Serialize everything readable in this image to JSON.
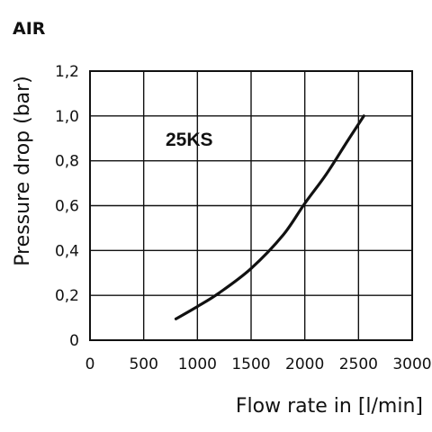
{
  "chart_data": {
    "type": "line",
    "title": "AIR",
    "xlabel": "Flow rate in [l/min]",
    "ylabel": "Pressure drop (bar)",
    "xlim": [
      0,
      3000
    ],
    "ylim": [
      0,
      1.2
    ],
    "x_ticks": [
      "0",
      "500",
      "1000",
      "1500",
      "2000",
      "2500",
      "3000"
    ],
    "y_ticks": [
      "0",
      "0,2",
      "0,4",
      "0,6",
      "0,8",
      "1,0",
      "1,2"
    ],
    "grid": true,
    "annotation": "25KS",
    "series": [
      {
        "x": [
          800,
          1000,
          1200,
          1500,
          1800,
          2000,
          2200,
          2400,
          2550
        ],
        "y": [
          0.095,
          0.15,
          0.21,
          0.32,
          0.47,
          0.61,
          0.74,
          0.89,
          1.0
        ]
      }
    ]
  }
}
